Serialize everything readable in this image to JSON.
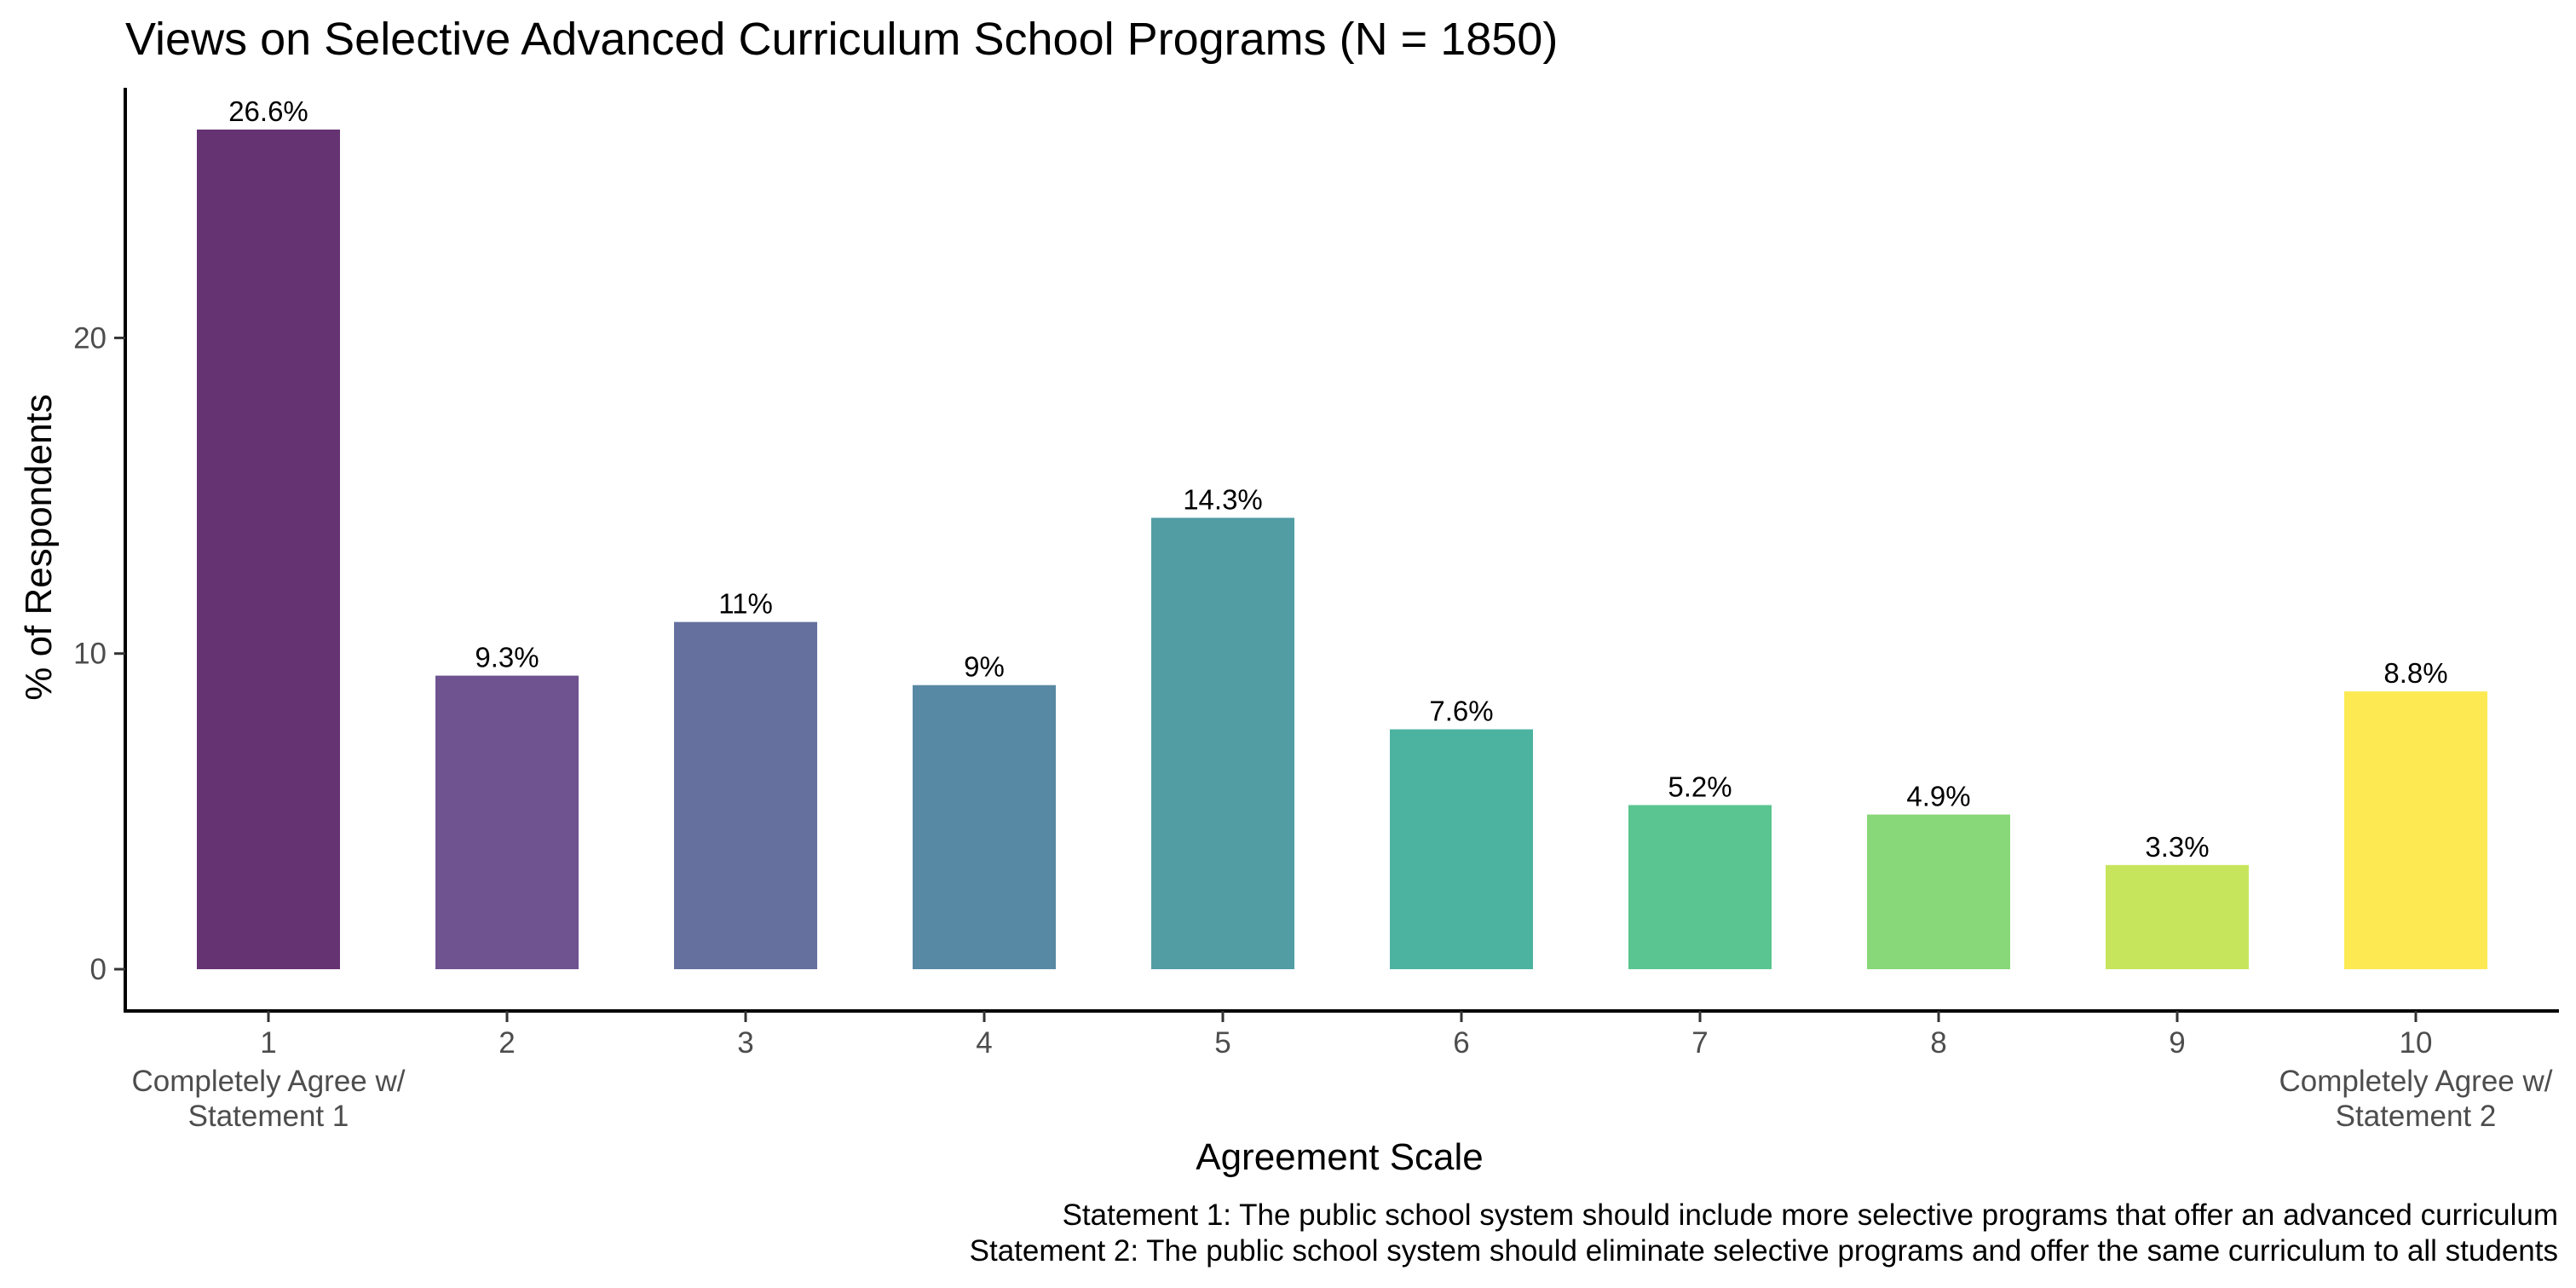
{
  "chart_data": {
    "type": "bar",
    "title": "Views on Selective Advanced Curriculum School Programs (N = 1850)",
    "xlabel": "Agreement Scale",
    "ylabel": "% of Respondents",
    "categories": [
      "1",
      "2",
      "3",
      "4",
      "5",
      "6",
      "7",
      "8",
      "9",
      "10"
    ],
    "category_sublabels": {
      "1": [
        "Completely Agree w/",
        "Statement 1"
      ],
      "10": [
        "Completely Agree w/",
        "Statement 2"
      ]
    },
    "values": [
      26.6,
      9.3,
      11.0,
      9.0,
      14.3,
      7.6,
      5.2,
      4.9,
      3.3,
      8.8
    ],
    "value_labels": [
      "26.6%",
      "9.3%",
      "11%",
      "9%",
      "14.3%",
      "7.6%",
      "5.2%",
      "4.9%",
      "3.3%",
      "8.8%"
    ],
    "colors": [
      "#663372",
      "#6e5390",
      "#65709f",
      "#5889a4",
      "#529da4",
      "#4db3a1",
      "#5bc591",
      "#88d778",
      "#c6e55c",
      "#fdea53"
    ],
    "ylim": [
      0,
      27.9
    ],
    "yticks": [
      0,
      10,
      20
    ],
    "grid": false,
    "legend": "none",
    "caption": [
      "Statement 1: The public school system should include more selective programs that offer an advanced curriculum",
      "Statement 2: The public school system should eliminate selective programs and offer the same curriculum to all students"
    ]
  }
}
